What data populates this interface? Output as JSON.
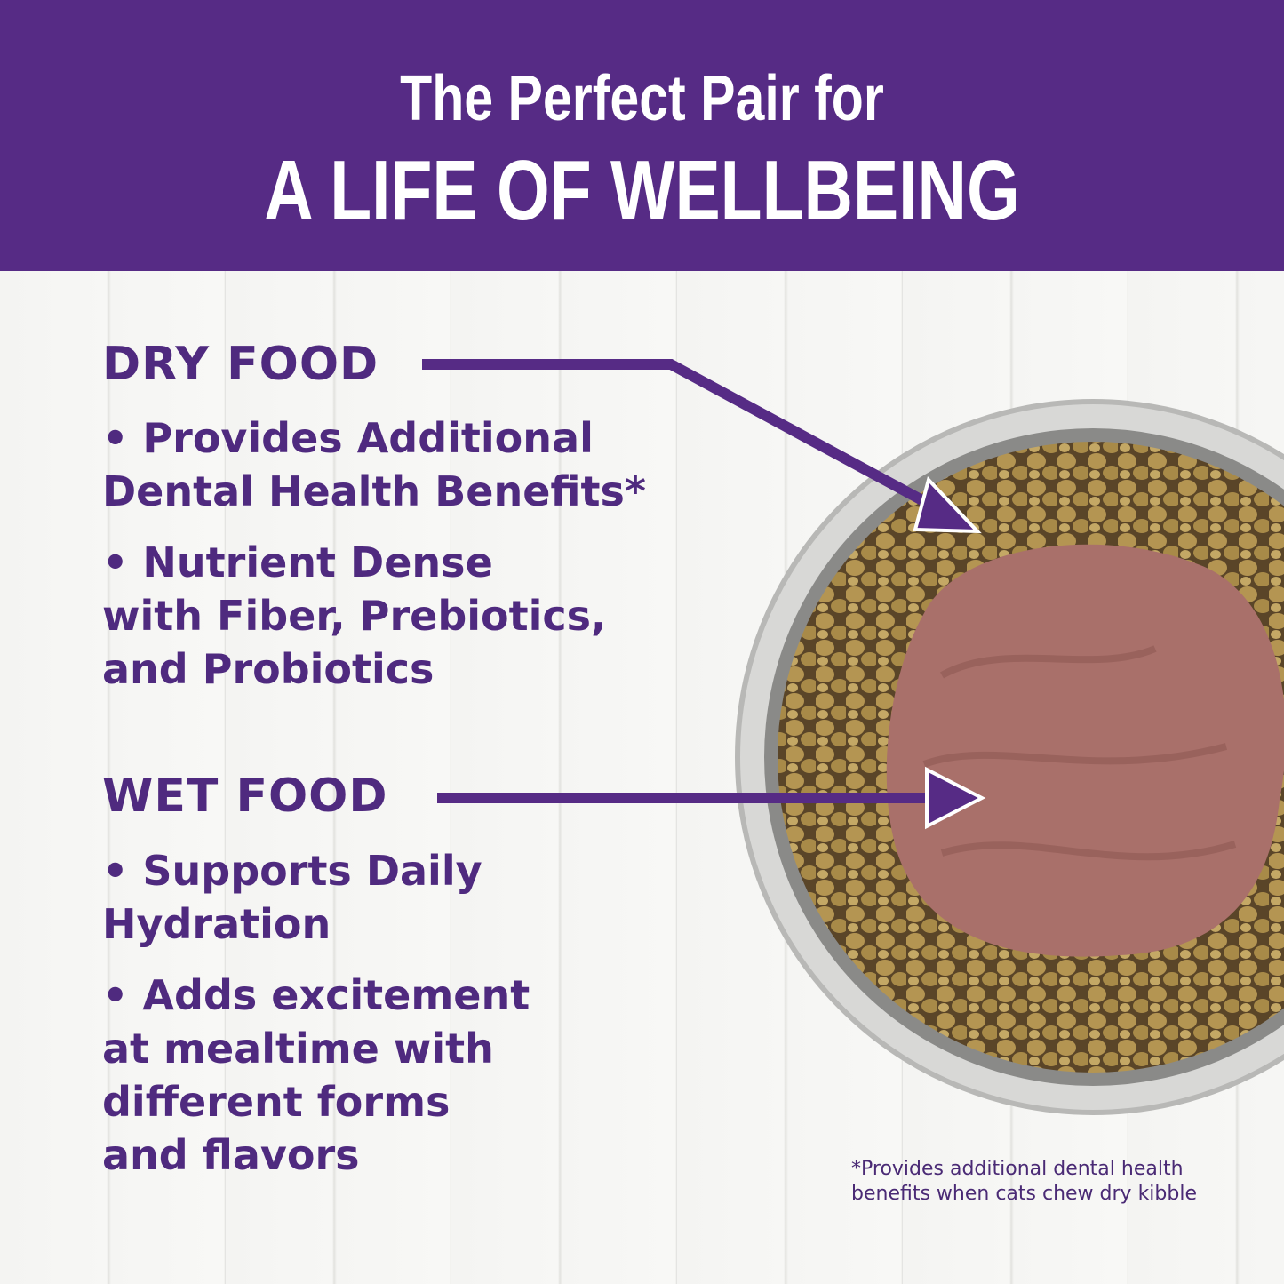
{
  "header": {
    "line1": "The Perfect Pair for",
    "line2": "A LIFE OF WELLBEING"
  },
  "dry": {
    "title": "DRY FOOD",
    "bullets": [
      "• Provides Additional\nDental Health Benefits*",
      "• Nutrient Dense\nwith Fiber, Prebiotics,\nand Probiotics"
    ]
  },
  "wet": {
    "title": "WET FOOD",
    "bullets": [
      "• Supports Daily\nHydration",
      "• Adds excitement\nat mealtime with\ndifferent forms\nand flavors"
    ]
  },
  "footnote": "*Provides additional dental health\nbenefits when cats chew dry kibble",
  "colors": {
    "brand_purple": "#562b85",
    "text_purple": "#4f2a7f"
  }
}
